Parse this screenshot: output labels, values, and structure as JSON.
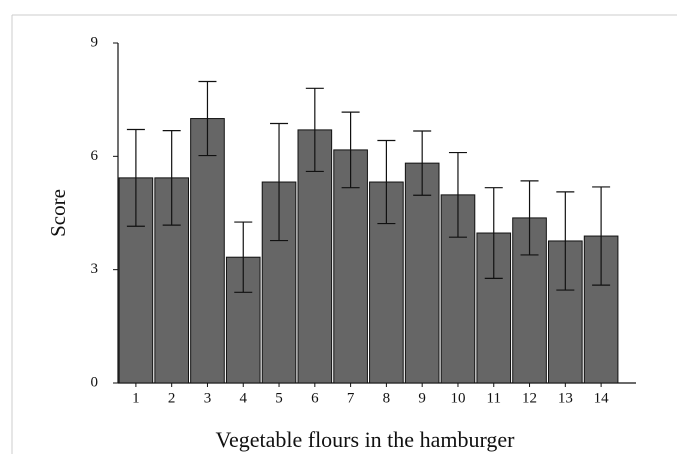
{
  "chart_data": {
    "type": "bar",
    "x_label": "Vegetable flours in the hamburger",
    "y_label": "Score",
    "categories": [
      "1",
      "2",
      "3",
      "4",
      "5",
      "6",
      "7",
      "8",
      "9",
      "10",
      "11",
      "12",
      "13",
      "14"
    ],
    "values": [
      5.43,
      5.43,
      7.0,
      3.33,
      5.32,
      6.7,
      6.17,
      5.32,
      5.82,
      4.98,
      3.97,
      4.37,
      3.76,
      3.89
    ],
    "errors": [
      1.28,
      1.25,
      0.98,
      0.93,
      1.55,
      1.1,
      1.0,
      1.1,
      0.85,
      1.12,
      1.2,
      0.98,
      1.3,
      1.3
    ],
    "color": "#666666",
    "ylim": [
      0,
      9
    ],
    "yticks": [
      0,
      3,
      6,
      9
    ]
  }
}
